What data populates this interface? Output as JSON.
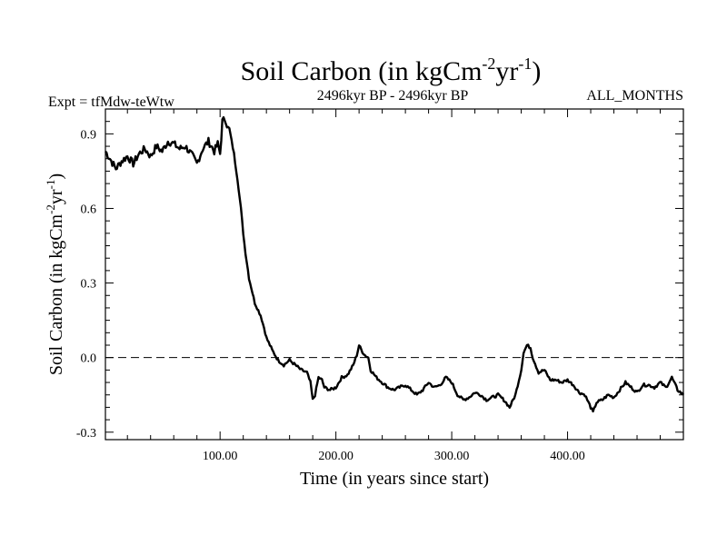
{
  "header": {
    "title_main": "Soil Carbon (in kgCm",
    "title_sup1": "-2",
    "title_mid": "yr",
    "title_sup2": "-1",
    "title_end": ")",
    "expt": "Expt = tfMdw-teWtw",
    "period": "2496kyr BP - 2496kyr BP",
    "season": "ALL_MONTHS"
  },
  "chart_data": {
    "type": "line",
    "title": "Soil Carbon (in kgCm-2yr-1)",
    "xlabel": "Time (in years since start)",
    "ylabel": "Soil Carbon (in kgCm-2yr-1)",
    "ylabel_parts": {
      "main": "Soil Carbon (in kgCm",
      "sup1": "-2",
      "mid": "yr",
      "sup2": "-1",
      "end": ")"
    },
    "xlim": [
      1,
      500
    ],
    "ylim": [
      -0.33,
      1.0
    ],
    "xticks": [
      100,
      200,
      300,
      400
    ],
    "xtick_labels": [
      "100.00",
      "200.00",
      "300.00",
      "400.00"
    ],
    "yticks": [
      0.9,
      0.6,
      0.3,
      0.0,
      -0.3
    ],
    "ytick_labels": [
      "0.9",
      "0.6",
      "0.3",
      "0.0",
      "-0.3"
    ],
    "reference_line": 0.0,
    "series": [
      {
        "name": "Soil Carbon",
        "x": [
          1,
          5,
          10,
          15,
          20,
          25,
          30,
          35,
          40,
          45,
          50,
          55,
          60,
          65,
          70,
          75,
          80,
          85,
          90,
          95,
          98,
          100,
          102,
          104,
          106,
          108,
          110,
          112,
          115,
          118,
          120,
          122,
          125,
          128,
          130,
          132,
          135,
          138,
          140,
          145,
          150,
          155,
          160,
          165,
          170,
          175,
          178,
          180,
          182,
          185,
          188,
          190,
          195,
          200,
          205,
          210,
          215,
          218,
          220,
          222,
          225,
          228,
          230,
          235,
          240,
          245,
          250,
          255,
          260,
          265,
          270,
          275,
          280,
          285,
          290,
          295,
          300,
          305,
          310,
          315,
          320,
          325,
          330,
          335,
          340,
          345,
          350,
          355,
          360,
          362,
          365,
          368,
          370,
          375,
          380,
          385,
          390,
          395,
          400,
          405,
          410,
          415,
          420,
          422,
          425,
          430,
          435,
          440,
          445,
          450,
          455,
          460,
          465,
          470,
          475,
          480,
          485,
          490,
          495,
          500
        ],
        "values": [
          0.83,
          0.8,
          0.76,
          0.79,
          0.81,
          0.78,
          0.82,
          0.84,
          0.81,
          0.85,
          0.83,
          0.87,
          0.86,
          0.84,
          0.85,
          0.82,
          0.78,
          0.84,
          0.87,
          0.83,
          0.86,
          0.82,
          0.95,
          0.96,
          0.93,
          0.92,
          0.87,
          0.82,
          0.72,
          0.6,
          0.5,
          0.42,
          0.32,
          0.26,
          0.22,
          0.2,
          0.17,
          0.12,
          0.08,
          0.03,
          -0.01,
          -0.03,
          -0.01,
          -0.03,
          -0.05,
          -0.06,
          -0.1,
          -0.17,
          -0.15,
          -0.08,
          -0.09,
          -0.12,
          -0.13,
          -0.12,
          -0.08,
          -0.07,
          -0.03,
          0.01,
          0.05,
          0.03,
          0.01,
          0.0,
          -0.05,
          -0.08,
          -0.1,
          -0.12,
          -0.13,
          -0.12,
          -0.11,
          -0.13,
          -0.15,
          -0.13,
          -0.1,
          -0.12,
          -0.11,
          -0.08,
          -0.1,
          -0.15,
          -0.17,
          -0.16,
          -0.14,
          -0.15,
          -0.17,
          -0.16,
          -0.15,
          -0.17,
          -0.2,
          -0.15,
          -0.05,
          0.02,
          0.05,
          0.04,
          0.0,
          -0.06,
          -0.05,
          -0.09,
          -0.09,
          -0.1,
          -0.09,
          -0.11,
          -0.14,
          -0.15,
          -0.2,
          -0.22,
          -0.18,
          -0.17,
          -0.15,
          -0.16,
          -0.13,
          -0.1,
          -0.12,
          -0.14,
          -0.11,
          -0.11,
          -0.12,
          -0.1,
          -0.12,
          -0.08,
          -0.13,
          -0.15
        ]
      }
    ]
  }
}
